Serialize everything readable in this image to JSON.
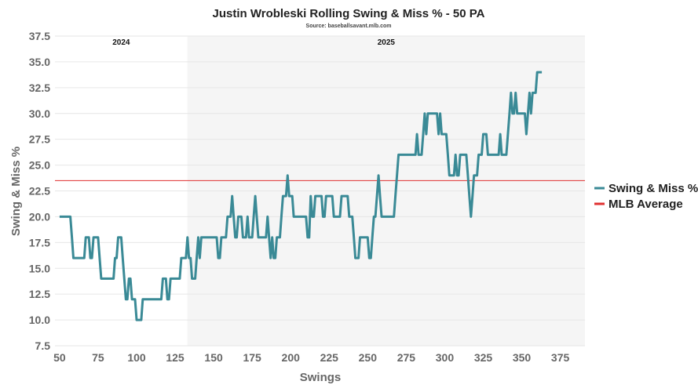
{
  "chart_data": {
    "type": "line",
    "title": "Justin Wrobleski Rolling Swing & Miss % - 50 PA",
    "subtitle": "Source: baseballsavant.mlb.com",
    "xlabel": "Swings",
    "ylabel": "Swing & Miss %",
    "xlim": [
      47,
      391
    ],
    "ylim": [
      7.5,
      37.5
    ],
    "x_ticks": [
      50,
      75,
      100,
      125,
      150,
      175,
      200,
      225,
      250,
      275,
      300,
      325,
      350,
      375
    ],
    "y_ticks": [
      7.5,
      10.0,
      12.5,
      15.0,
      17.5,
      20.0,
      22.5,
      25.0,
      27.5,
      30.0,
      32.5,
      35.0,
      37.5
    ],
    "grid": true,
    "seasons": [
      {
        "label": "2024",
        "x_start": 47,
        "x_end": 133,
        "shaded": false
      },
      {
        "label": "2025",
        "x_start": 133,
        "x_end": 391,
        "shaded": true
      }
    ],
    "reference_line": {
      "name": "MLB Average",
      "value": 23.5,
      "color": "#e03131"
    },
    "legend_position": "right",
    "series": [
      {
        "name": "Swing & Miss %",
        "color": "#3a8a96",
        "points": [
          [
            50,
            20
          ],
          [
            57,
            20
          ],
          [
            58,
            18
          ],
          [
            59,
            16
          ],
          [
            66,
            16
          ],
          [
            67,
            18
          ],
          [
            69,
            18
          ],
          [
            70,
            16
          ],
          [
            71,
            16
          ],
          [
            72,
            18
          ],
          [
            75,
            18
          ],
          [
            76,
            16
          ],
          [
            77,
            14
          ],
          [
            85,
            14
          ],
          [
            86,
            16
          ],
          [
            87,
            16
          ],
          [
            88,
            18
          ],
          [
            90,
            18
          ],
          [
            91,
            16
          ],
          [
            92,
            14
          ],
          [
            93,
            12
          ],
          [
            94,
            12
          ],
          [
            95,
            14
          ],
          [
            96,
            14
          ],
          [
            97,
            12
          ],
          [
            99,
            12
          ],
          [
            100,
            10
          ],
          [
            103,
            10
          ],
          [
            104,
            12
          ],
          [
            116,
            12
          ],
          [
            117,
            14
          ],
          [
            119,
            14
          ],
          [
            120,
            12
          ],
          [
            121,
            12
          ],
          [
            122,
            14
          ],
          [
            128,
            14
          ],
          [
            129,
            16
          ],
          [
            132,
            16
          ],
          [
            133,
            18
          ],
          [
            134,
            16
          ],
          [
            135,
            16
          ],
          [
            136,
            14
          ],
          [
            138,
            14
          ],
          [
            139,
            16
          ],
          [
            140,
            18
          ],
          [
            141,
            16
          ],
          [
            142,
            18
          ],
          [
            152,
            18
          ],
          [
            153,
            16
          ],
          [
            154,
            16
          ],
          [
            155,
            18
          ],
          [
            158,
            18
          ],
          [
            159,
            20
          ],
          [
            161,
            20
          ],
          [
            162,
            22
          ],
          [
            163,
            20
          ],
          [
            164,
            18
          ],
          [
            165,
            18
          ],
          [
            166,
            20
          ],
          [
            168,
            20
          ],
          [
            169,
            18
          ],
          [
            171,
            18
          ],
          [
            172,
            20
          ],
          [
            173,
            18
          ],
          [
            175,
            18
          ],
          [
            176,
            20
          ],
          [
            177,
            22
          ],
          [
            178,
            20
          ],
          [
            179,
            18
          ],
          [
            184,
            18
          ],
          [
            185,
            20
          ],
          [
            186,
            18
          ],
          [
            187,
            16
          ],
          [
            188,
            18
          ],
          [
            189,
            16
          ],
          [
            190,
            16
          ],
          [
            191,
            18
          ],
          [
            193,
            18
          ],
          [
            194,
            20
          ],
          [
            195,
            22
          ],
          [
            197,
            22
          ],
          [
            198,
            24
          ],
          [
            199,
            22
          ],
          [
            201,
            22
          ],
          [
            202,
            20
          ],
          [
            210,
            20
          ],
          [
            211,
            18
          ],
          [
            212,
            18
          ],
          [
            213,
            22
          ],
          [
            214,
            20
          ],
          [
            215,
            20
          ],
          [
            216,
            22
          ],
          [
            220,
            22
          ],
          [
            221,
            20
          ],
          [
            222,
            20
          ],
          [
            223,
            22
          ],
          [
            227,
            22
          ],
          [
            228,
            20
          ],
          [
            232,
            20
          ],
          [
            233,
            22
          ],
          [
            237,
            22
          ],
          [
            238,
            20
          ],
          [
            240,
            20
          ],
          [
            241,
            18
          ],
          [
            242,
            16
          ],
          [
            244,
            16
          ],
          [
            245,
            18
          ],
          [
            250,
            18
          ],
          [
            251,
            16
          ],
          [
            252,
            16
          ],
          [
            253,
            18
          ],
          [
            254,
            20
          ],
          [
            255,
            20
          ],
          [
            256,
            22
          ],
          [
            257,
            24
          ],
          [
            258,
            22
          ],
          [
            259,
            20
          ],
          [
            267,
            20
          ],
          [
            268,
            22
          ],
          [
            269,
            24
          ],
          [
            270,
            26
          ],
          [
            281,
            26
          ],
          [
            282,
            28
          ],
          [
            283,
            26
          ],
          [
            285,
            26
          ],
          [
            286,
            28
          ],
          [
            287,
            30
          ],
          [
            288,
            28
          ],
          [
            289,
            30
          ],
          [
            295,
            30
          ],
          [
            296,
            28
          ],
          [
            297,
            30
          ],
          [
            298,
            28
          ],
          [
            301,
            28
          ],
          [
            302,
            26
          ],
          [
            303,
            24
          ],
          [
            306,
            24
          ],
          [
            307,
            26
          ],
          [
            308,
            24
          ],
          [
            309,
            24
          ],
          [
            310,
            26
          ],
          [
            314,
            26
          ],
          [
            315,
            24
          ],
          [
            316,
            22
          ],
          [
            317,
            20
          ],
          [
            318,
            22
          ],
          [
            319,
            24
          ],
          [
            321,
            24
          ],
          [
            322,
            26
          ],
          [
            324,
            26
          ],
          [
            325,
            28
          ],
          [
            327,
            28
          ],
          [
            328,
            26
          ],
          [
            335,
            26
          ],
          [
            336,
            28
          ],
          [
            337,
            26
          ],
          [
            340,
            26
          ],
          [
            341,
            28
          ],
          [
            342,
            30
          ],
          [
            343,
            32
          ],
          [
            344,
            30
          ],
          [
            345,
            30
          ],
          [
            346,
            32
          ],
          [
            347,
            30
          ],
          [
            352,
            30
          ],
          [
            353,
            28
          ],
          [
            354,
            30
          ],
          [
            355,
            32
          ],
          [
            356,
            30
          ],
          [
            357,
            32
          ],
          [
            359,
            32
          ],
          [
            360,
            34
          ],
          [
            363,
            34
          ]
        ]
      }
    ]
  }
}
